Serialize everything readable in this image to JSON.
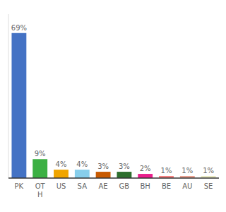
{
  "chart_data": {
    "type": "bar",
    "categories": [
      "PK",
      "OT\nH",
      "US",
      "SA",
      "AE",
      "GB",
      "BH",
      "BE",
      "AU",
      "SE"
    ],
    "values": [
      69,
      9,
      4,
      4,
      3,
      3,
      2,
      1,
      1,
      1
    ],
    "value_labels": [
      "69%",
      "9%",
      "4%",
      "4%",
      "3%",
      "3%",
      "2%",
      "1%",
      "1%",
      "1%"
    ],
    "colors": [
      "#4472c4",
      "#3cb043",
      "#f0a500",
      "#87ceeb",
      "#c85a00",
      "#2d6e2d",
      "#e91e8c",
      "#f48080",
      "#e8a090",
      "#e8e8c0"
    ],
    "ylim": [
      0,
      78
    ],
    "data_labels": true,
    "tick_labels": "x",
    "grid": false
  }
}
